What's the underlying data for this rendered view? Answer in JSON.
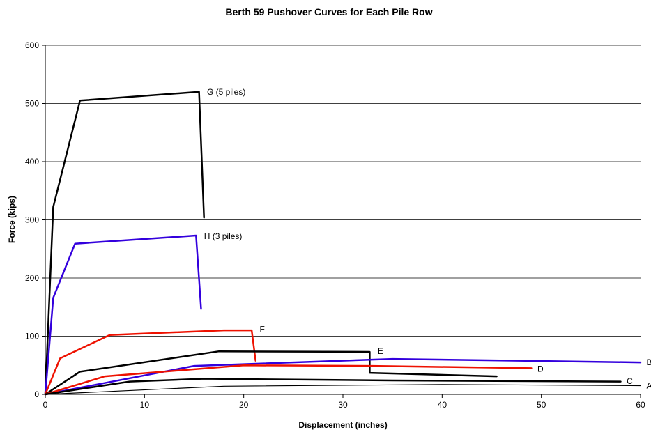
{
  "chart_data": {
    "type": "line",
    "title": "Berth 59 Pushover Curves for Each Pile Row",
    "xlabel": "Displacement (inches)",
    "ylabel": "Force (kips)",
    "xlim": [
      0,
      60
    ],
    "ylim": [
      0,
      600
    ],
    "xticks": [
      0,
      10,
      20,
      30,
      40,
      50,
      60
    ],
    "yticks": [
      0,
      100,
      200,
      300,
      400,
      500,
      600
    ],
    "grid": "horizontal",
    "legend": "none",
    "series": [
      {
        "name": "G (5 piles)",
        "color": "#000000",
        "width": 2.5,
        "points": [
          [
            0,
            0
          ],
          [
            0.8,
            322
          ],
          [
            3.5,
            505
          ],
          [
            15.5,
            520
          ],
          [
            16,
            304
          ]
        ]
      },
      {
        "name": "H (3 piles)",
        "color": "#3300dd",
        "width": 2.5,
        "points": [
          [
            0,
            0
          ],
          [
            0.8,
            166
          ],
          [
            3,
            259
          ],
          [
            15.2,
            273
          ],
          [
            15.7,
            147
          ]
        ]
      },
      {
        "name": "F",
        "color": "#ee1100",
        "width": 2.5,
        "points": [
          [
            0,
            0
          ],
          [
            1.5,
            62
          ],
          [
            6.5,
            102
          ],
          [
            18,
            110
          ],
          [
            20.8,
            110
          ],
          [
            21.2,
            58
          ]
        ]
      },
      {
        "name": "E",
        "color": "#000000",
        "width": 2.5,
        "points": [
          [
            0,
            0
          ],
          [
            3.5,
            39
          ],
          [
            17.5,
            74
          ],
          [
            32.7,
            73
          ],
          [
            32.7,
            37
          ],
          [
            45.5,
            31
          ]
        ]
      },
      {
        "name": "B",
        "color": "#3300dd",
        "width": 2.5,
        "points": [
          [
            0,
            0
          ],
          [
            15,
            49
          ],
          [
            35,
            61
          ],
          [
            60,
            55
          ]
        ]
      },
      {
        "name": "D",
        "color": "#ee1100",
        "width": 2.5,
        "points": [
          [
            0,
            0
          ],
          [
            6,
            31
          ],
          [
            20,
            50
          ],
          [
            33,
            49
          ],
          [
            49,
            45
          ]
        ]
      },
      {
        "name": "C",
        "color": "#000000",
        "width": 2.5,
        "points": [
          [
            0,
            0
          ],
          [
            8.5,
            22
          ],
          [
            16,
            27
          ],
          [
            35,
            24
          ],
          [
            58,
            22
          ]
        ]
      },
      {
        "name": "A",
        "color": "#000000",
        "width": 1.2,
        "points": [
          [
            0,
            0
          ],
          [
            18,
            14
          ],
          [
            40,
            17
          ],
          [
            60,
            15
          ]
        ]
      }
    ],
    "annotations": [
      {
        "text": "G (5 piles)",
        "x": 16.3,
        "y": 520
      },
      {
        "text": "H (3 piles)",
        "x": 16,
        "y": 272
      },
      {
        "text": "F",
        "x": 21.6,
        "y": 112
      },
      {
        "text": "E",
        "x": 33.5,
        "y": 74
      },
      {
        "text": "B",
        "x": 60.6,
        "y": 55
      },
      {
        "text": "D",
        "x": 49.6,
        "y": 44
      },
      {
        "text": "C",
        "x": 58.6,
        "y": 23
      },
      {
        "text": "A",
        "x": 60.6,
        "y": 15
      }
    ]
  }
}
